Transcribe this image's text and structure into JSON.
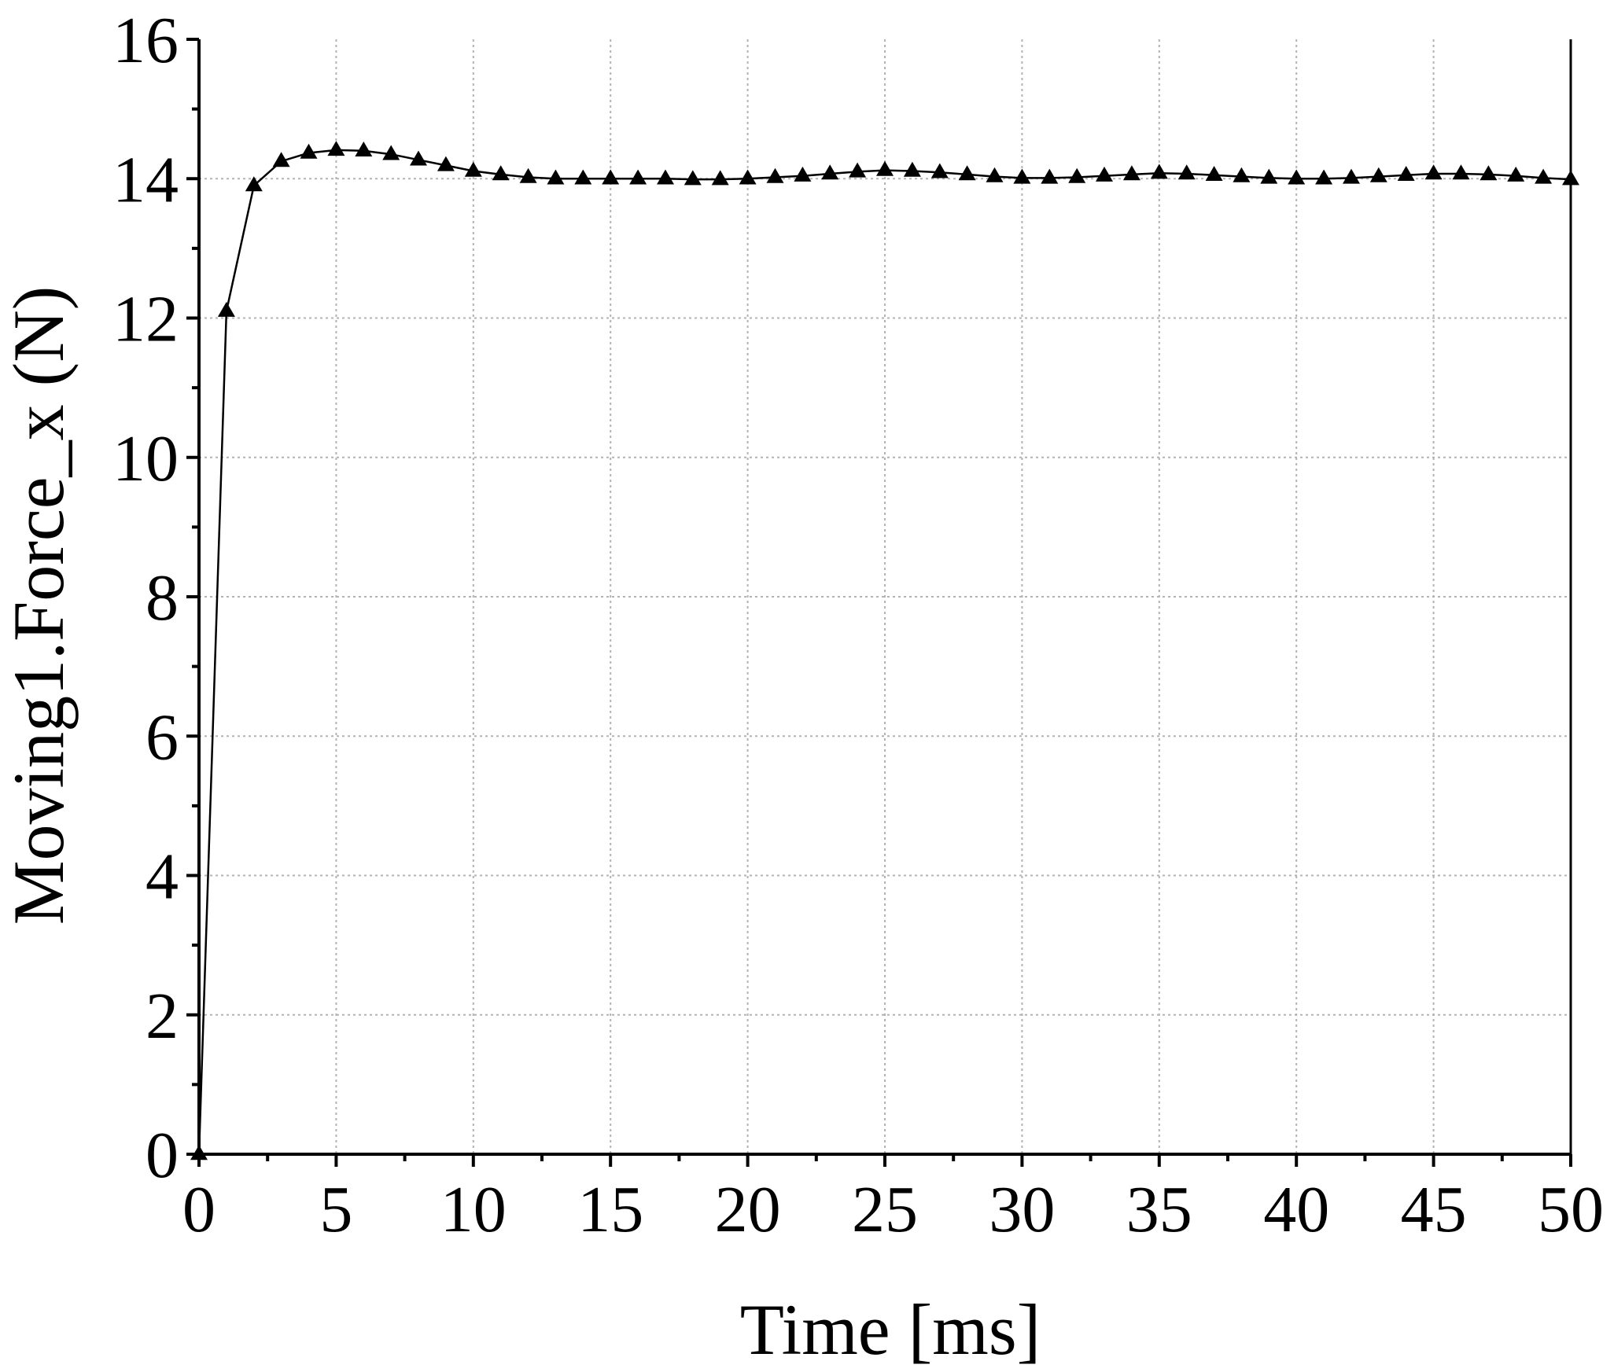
{
  "chart_data": {
    "type": "line",
    "title": "",
    "xlabel": "Time [ms]",
    "ylabel": "Moving1.Force_x (N)",
    "xlim": [
      0,
      50
    ],
    "ylim": [
      0,
      16
    ],
    "x_ticks": [
      0,
      5,
      10,
      15,
      20,
      25,
      30,
      35,
      40,
      45,
      50
    ],
    "y_ticks": [
      0,
      2,
      4,
      6,
      8,
      10,
      12,
      14,
      16
    ],
    "grid": true,
    "legend": "none",
    "marker": "triangle",
    "line_color": "#000000",
    "series": [
      {
        "x": [
          0,
          1,
          2,
          3,
          4,
          5,
          6,
          7,
          8,
          9,
          10,
          11,
          12,
          13,
          14,
          15,
          16,
          17,
          18,
          19,
          20,
          21,
          22,
          23,
          24,
          25,
          26,
          27,
          28,
          29,
          30,
          31,
          32,
          33,
          34,
          35,
          36,
          37,
          38,
          39,
          40,
          41,
          42,
          43,
          44,
          45,
          46,
          47,
          48,
          49,
          50
        ],
        "y": [
          0,
          12.1,
          13.9,
          14.25,
          14.37,
          14.41,
          14.4,
          14.35,
          14.27,
          14.19,
          14.11,
          14.06,
          14.02,
          14.0,
          14.0,
          14.0,
          14.0,
          14.0,
          13.99,
          13.99,
          14.0,
          14.02,
          14.04,
          14.07,
          14.1,
          14.12,
          14.11,
          14.09,
          14.06,
          14.03,
          14.01,
          14.01,
          14.02,
          14.04,
          14.06,
          14.08,
          14.07,
          14.05,
          14.03,
          14.01,
          14.0,
          14.0,
          14.01,
          14.03,
          14.05,
          14.07,
          14.07,
          14.06,
          14.04,
          14.01,
          13.99
        ]
      }
    ]
  }
}
